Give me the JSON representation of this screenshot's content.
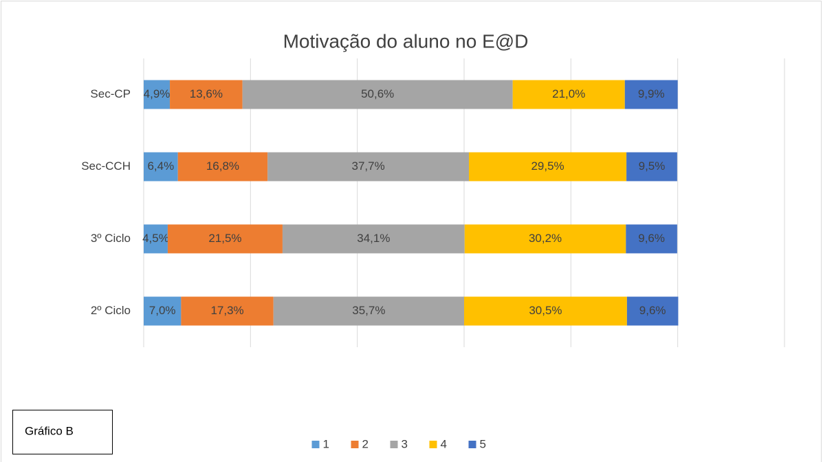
{
  "chart_data": {
    "type": "stacked_barh",
    "title": "Motivação do aluno no E@D",
    "annotation": "Gráfico B",
    "categories": [
      "Sec-CP",
      "Sec-CCH",
      "3º Ciclo",
      "2º Ciclo"
    ],
    "series": [
      {
        "name": "1",
        "color": "#5b9bd5",
        "values": [
          4.9,
          6.4,
          4.5,
          7.0
        ],
        "value_labels": [
          "4,9%",
          "6,4%",
          "4,5%",
          "7,0%"
        ]
      },
      {
        "name": "2",
        "color": "#ed7d31",
        "values": [
          13.6,
          16.8,
          21.5,
          17.3
        ],
        "value_labels": [
          "13,6%",
          "16,8%",
          "21,5%",
          "17,3%"
        ]
      },
      {
        "name": "3",
        "color": "#a5a5a5",
        "values": [
          50.6,
          37.7,
          34.1,
          35.7
        ],
        "value_labels": [
          "50,6%",
          "37,7%",
          "34,1%",
          "35,7%"
        ]
      },
      {
        "name": "4",
        "color": "#ffc000",
        "values": [
          21.0,
          29.5,
          30.2,
          30.5
        ],
        "value_labels": [
          "21,0%",
          "29,5%",
          "30,2%",
          "30,5%"
        ]
      },
      {
        "name": "5",
        "color": "#4472c4",
        "values": [
          9.9,
          9.5,
          9.6,
          9.6
        ],
        "value_labels": [
          "9,9%",
          "9,5%",
          "9,6%",
          "9,6%"
        ]
      }
    ],
    "xlim": [
      0,
      120
    ],
    "xticks": [
      0,
      20,
      40,
      60,
      80,
      100,
      120
    ],
    "grid": true,
    "legend": "bottom"
  }
}
